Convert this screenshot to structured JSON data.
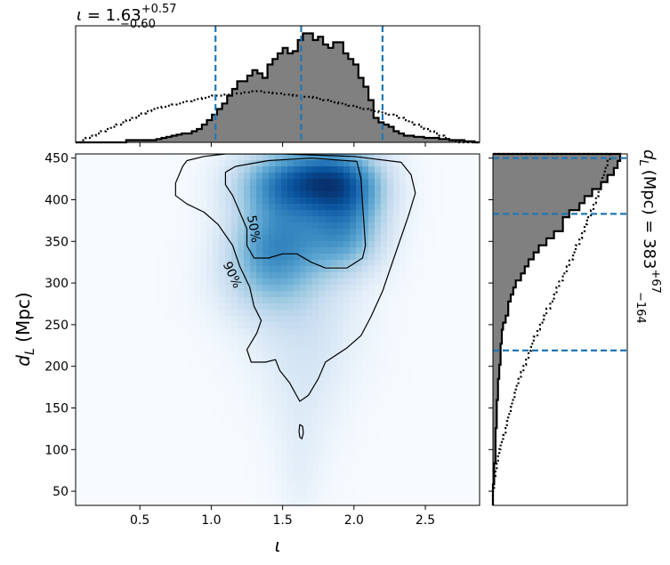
{
  "chart_data": {
    "type": "heatmap",
    "plot_kind": "corner plot: 2D posterior density with marginal histograms",
    "title": "ι = 1.63⁺⁰·⁵⁷₋₀.₆₀",
    "title_parts": {
      "symbol": "ι",
      "eq": " = ",
      "value": "1.63",
      "sup": "+0.57",
      "sub": "−0.60"
    },
    "right_title_parts": {
      "text": "(Mpc) = 383",
      "symbol": "d",
      "sub_L": "L",
      "sup": "+67",
      "sub": "−164"
    },
    "xlabel": "ι",
    "ylabel_parts": {
      "symbol": "d",
      "sub": "L",
      "rest": " (Mpc)"
    },
    "xlim": [
      0.05,
      2.88
    ],
    "ylim": [
      33,
      455
    ],
    "xticks": [
      0.5,
      1.0,
      1.5,
      2.0,
      2.5
    ],
    "xtick_labels": [
      "0.5",
      "1.0",
      "1.5",
      "2.0",
      "2.5"
    ],
    "yticks": [
      50,
      100,
      150,
      200,
      250,
      300,
      350,
      400,
      450
    ],
    "ytick_labels": [
      "50",
      "100",
      "150",
      "200",
      "250",
      "300",
      "350",
      "400",
      "450"
    ],
    "colormap": "Blues",
    "density_blobs": [
      {
        "x": 1.8,
        "y": 425,
        "sx": 0.22,
        "sy": 28,
        "w": 1.0
      },
      {
        "x": 1.45,
        "y": 420,
        "sx": 0.22,
        "sy": 28,
        "w": 0.7
      },
      {
        "x": 2.0,
        "y": 410,
        "sx": 0.18,
        "sy": 30,
        "w": 0.55
      },
      {
        "x": 1.95,
        "y": 355,
        "sx": 0.18,
        "sy": 30,
        "w": 0.55
      },
      {
        "x": 1.4,
        "y": 345,
        "sx": 0.2,
        "sy": 35,
        "w": 0.55
      },
      {
        "x": 1.65,
        "y": 360,
        "sx": 0.25,
        "sy": 40,
        "w": 0.45
      },
      {
        "x": 1.4,
        "y": 300,
        "sx": 0.25,
        "sy": 35,
        "w": 0.3
      },
      {
        "x": 1.65,
        "y": 250,
        "sx": 0.28,
        "sy": 55,
        "w": 0.18
      },
      {
        "x": 1.65,
        "y": 160,
        "sx": 0.18,
        "sy": 60,
        "w": 0.1
      },
      {
        "x": 1.62,
        "y": 70,
        "sx": 0.1,
        "sy": 45,
        "w": 0.07
      }
    ],
    "contours": [
      {
        "level": "90%",
        "points": [
          [
            0.8,
            440
          ],
          [
            0.75,
            420
          ],
          [
            0.75,
            405
          ],
          [
            0.83,
            395
          ],
          [
            0.95,
            385
          ],
          [
            1.05,
            370
          ],
          [
            1.15,
            345
          ],
          [
            1.2,
            320
          ],
          [
            1.27,
            295
          ],
          [
            1.3,
            272
          ],
          [
            1.35,
            255
          ],
          [
            1.32,
            240
          ],
          [
            1.25,
            220
          ],
          [
            1.28,
            205
          ],
          [
            1.38,
            205
          ],
          [
            1.45,
            208
          ],
          [
            1.48,
            195
          ],
          [
            1.55,
            180
          ],
          [
            1.62,
            158
          ],
          [
            1.68,
            165
          ],
          [
            1.75,
            185
          ],
          [
            1.8,
            205
          ],
          [
            1.95,
            222
          ],
          [
            2.05,
            237
          ],
          [
            2.12,
            260
          ],
          [
            2.2,
            290
          ],
          [
            2.28,
            330
          ],
          [
            2.38,
            380
          ],
          [
            2.43,
            408
          ],
          [
            2.4,
            430
          ],
          [
            2.33,
            445
          ],
          [
            2.0,
            452
          ],
          [
            1.5,
            455
          ],
          [
            1.1,
            455
          ],
          [
            0.95,
            452
          ],
          [
            0.83,
            447
          ]
        ]
      },
      {
        "level": "50%",
        "points": [
          [
            1.1,
            433
          ],
          [
            1.17,
            440
          ],
          [
            1.4,
            447
          ],
          [
            1.7,
            450
          ],
          [
            2.02,
            446
          ],
          [
            2.05,
            425
          ],
          [
            2.06,
            395
          ],
          [
            2.07,
            370
          ],
          [
            2.08,
            345
          ],
          [
            2.06,
            330
          ],
          [
            1.95,
            318
          ],
          [
            1.8,
            318
          ],
          [
            1.7,
            325
          ],
          [
            1.6,
            335
          ],
          [
            1.5,
            335
          ],
          [
            1.4,
            330
          ],
          [
            1.3,
            330
          ],
          [
            1.25,
            345
          ],
          [
            1.25,
            365
          ],
          [
            1.2,
            385
          ],
          [
            1.15,
            405
          ],
          [
            1.1,
            418
          ]
        ]
      },
      {
        "level": "",
        "points": [
          [
            1.62,
            130
          ],
          [
            1.64,
            128
          ],
          [
            1.645,
            120
          ],
          [
            1.635,
            113
          ],
          [
            1.62,
            115
          ],
          [
            1.615,
            122
          ]
        ]
      }
    ],
    "contour_labels": [
      {
        "text": "50%",
        "x": 1.3,
        "y": 365,
        "rotate": 80
      },
      {
        "text": "90%",
        "x": 1.15,
        "y": 310,
        "rotate": 65
      }
    ],
    "top_marginal": {
      "xlabel": "ι",
      "range": [
        0.05,
        2.88
      ],
      "max_bin_value": 1.0,
      "posterior_bins": [
        0.0,
        0.0,
        0.0,
        0.0,
        0.0,
        0.0,
        0.0,
        0.0,
        0.0,
        0.0,
        0.02,
        0.02,
        0.02,
        0.02,
        0.02,
        0.02,
        0.03,
        0.04,
        0.05,
        0.06,
        0.07,
        0.08,
        0.08,
        0.1,
        0.12,
        0.16,
        0.2,
        0.25,
        0.3,
        0.35,
        0.42,
        0.48,
        0.55,
        0.55,
        0.6,
        0.65,
        0.62,
        0.58,
        0.7,
        0.75,
        0.8,
        0.85,
        0.8,
        0.82,
        0.92,
        0.98,
        0.98,
        0.92,
        0.95,
        0.88,
        0.85,
        0.9,
        0.9,
        0.8,
        0.75,
        0.7,
        0.58,
        0.5,
        0.38,
        0.22,
        0.18,
        0.16,
        0.14,
        0.1,
        0.08,
        0.06,
        0.06,
        0.05,
        0.05,
        0.04,
        0.04,
        0.04,
        0.03,
        0.03,
        0.02,
        0.02,
        0.02,
        0.01,
        0.01,
        0.0
      ],
      "prior_bins": [
        0.0,
        0.02,
        0.04,
        0.06,
        0.08,
        0.1,
        0.12,
        0.14,
        0.16,
        0.18,
        0.2,
        0.22,
        0.24,
        0.26,
        0.28,
        0.3,
        0.31,
        0.32,
        0.33,
        0.34,
        0.35,
        0.36,
        0.37,
        0.38,
        0.39,
        0.4,
        0.41,
        0.42,
        0.42,
        0.43,
        0.43,
        0.44,
        0.44,
        0.45,
        0.45,
        0.46,
        0.46,
        0.45,
        0.45,
        0.44,
        0.44,
        0.43,
        0.43,
        0.42,
        0.42,
        0.41,
        0.41,
        0.4,
        0.39,
        0.38,
        0.37,
        0.36,
        0.35,
        0.34,
        0.33,
        0.32,
        0.31,
        0.3,
        0.29,
        0.28,
        0.27,
        0.26,
        0.25,
        0.24,
        0.22,
        0.2,
        0.18,
        0.16,
        0.14,
        0.12,
        0.1,
        0.08,
        0.06,
        0.04,
        0.02,
        0.01,
        0.0,
        0.0,
        0.0,
        0.0
      ],
      "quantile_lines": [
        1.03,
        1.63,
        2.2
      ]
    },
    "right_marginal": {
      "ylabel": "d_L (Mpc)",
      "range": [
        33,
        455
      ],
      "max_bin_value": 1.0,
      "posterior_bins": [
        0.0,
        0.0,
        0.0,
        0.01,
        0.01,
        0.01,
        0.02,
        0.02,
        0.02,
        0.02,
        0.02,
        0.03,
        0.03,
        0.03,
        0.03,
        0.04,
        0.04,
        0.04,
        0.05,
        0.05,
        0.06,
        0.06,
        0.06,
        0.07,
        0.07,
        0.08,
        0.1,
        0.12,
        0.12,
        0.14,
        0.16,
        0.18,
        0.22,
        0.25,
        0.28,
        0.32,
        0.36,
        0.42,
        0.48,
        0.55,
        0.55,
        0.6,
        0.68,
        0.72,
        0.78,
        0.85,
        0.9,
        0.95,
        0.98,
        1.0
      ],
      "prior_bins": [
        0.0,
        0.0,
        0.01,
        0.01,
        0.02,
        0.03,
        0.04,
        0.05,
        0.06,
        0.08,
        0.1,
        0.11,
        0.12,
        0.14,
        0.15,
        0.17,
        0.18,
        0.2,
        0.22,
        0.24,
        0.26,
        0.28,
        0.3,
        0.32,
        0.35,
        0.37,
        0.4,
        0.42,
        0.45,
        0.48,
        0.5,
        0.52,
        0.55,
        0.58,
        0.6,
        0.63,
        0.65,
        0.68,
        0.7,
        0.72,
        0.74,
        0.77,
        0.79,
        0.81,
        0.83,
        0.85,
        0.86,
        0.88,
        0.9,
        0.92
      ],
      "quantile_lines": [
        219,
        383,
        450
      ]
    },
    "colors": {
      "hist_fill": "#808080",
      "hist_edge": "#000000",
      "prior": "#000000",
      "quantile": "#1f77b4",
      "contour": "#000000"
    }
  }
}
